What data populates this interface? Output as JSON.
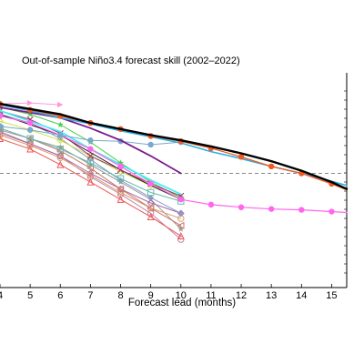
{
  "chart_data": {
    "type": "line",
    "title": "Out-of-sample Niño3.4 forecast skill (2002–2022)",
    "xlabel": "Forecast lead (months)",
    "ylabel": "",
    "x_ticks": [
      4,
      5,
      6,
      7,
      8,
      9,
      10,
      11,
      12,
      13,
      14,
      15
    ],
    "xlim": [
      4,
      15.5
    ],
    "ylim": [
      0.0,
      1.0
    ],
    "reference_line": 0.5,
    "grid": false,
    "series": [
      {
        "color": "#000000",
        "marker": "none",
        "width": 2.4,
        "x": [
          4,
          5,
          6,
          7,
          8,
          9,
          10,
          11,
          12,
          13,
          14,
          15,
          15.5
        ],
        "y": [
          0.9,
          0.87,
          0.84,
          0.79,
          0.755,
          0.72,
          0.69,
          0.655,
          0.615,
          0.57,
          0.515,
          0.45,
          0.41
        ]
      },
      {
        "color": "#f05a22",
        "marker": "circle-filled",
        "width": 1.3,
        "x": [
          4,
          5,
          6,
          7,
          8,
          9,
          10,
          11,
          12,
          13,
          14,
          15,
          15.5
        ],
        "y": [
          0.9,
          0.865,
          0.83,
          0.79,
          0.755,
          0.715,
          0.685,
          0.645,
          0.595,
          0.54,
          0.5,
          0.44,
          0.405
        ]
      },
      {
        "color": "#2ab0e0",
        "marker": "none",
        "width": 1.6,
        "x": [
          4,
          5,
          6,
          7,
          8,
          9,
          10,
          11,
          12,
          13,
          14,
          15,
          15.5
        ],
        "y": [
          0.895,
          0.86,
          0.82,
          0.785,
          0.745,
          0.71,
          0.675,
          0.625,
          0.585,
          0.54,
          0.5,
          0.455,
          0.43
        ]
      },
      {
        "color": "#7a1a8c",
        "marker": "none",
        "width": 1.8,
        "x": [
          4,
          5,
          6,
          7,
          8,
          9,
          10
        ],
        "y": [
          0.88,
          0.85,
          0.82,
          0.76,
          0.69,
          0.6,
          0.5
        ]
      },
      {
        "color": "#78a8cc",
        "marker": "circle-filled",
        "width": 1.0,
        "x": [
          4,
          5,
          6,
          7,
          8,
          9,
          10
        ],
        "y": [
          0.77,
          0.75,
          0.72,
          0.69,
          0.685,
          0.665,
          0.68
        ]
      },
      {
        "color": "#ff66ee",
        "marker": "circle-filled",
        "width": 1.2,
        "x": [
          4,
          5,
          6,
          7,
          8,
          9,
          10,
          11,
          12,
          13,
          14,
          15,
          15.5
        ],
        "y": [
          0.83,
          0.79,
          0.72,
          0.64,
          0.54,
          0.44,
          0.35,
          0.32,
          0.305,
          0.295,
          0.29,
          0.28,
          0.275
        ]
      },
      {
        "color": "#ff99dd",
        "marker": "triangle-right",
        "width": 1.0,
        "x": [
          4,
          5,
          6
        ],
        "y": [
          0.9,
          0.905,
          0.895
        ]
      },
      {
        "color": "#44eeee",
        "marker": "none",
        "width": 1.8,
        "x": [
          4,
          5,
          6,
          7,
          8,
          9,
          10
        ],
        "y": [
          0.86,
          0.8,
          0.74,
          0.64,
          0.55,
          0.46,
          0.38
        ]
      },
      {
        "color": "#a03070",
        "marker": "x",
        "width": 1.0,
        "x": [
          4,
          5,
          6,
          7,
          8,
          9,
          10
        ],
        "y": [
          0.86,
          0.81,
          0.73,
          0.6,
          0.52,
          0.44,
          0.37
        ]
      },
      {
        "color": "#222222",
        "marker": "none",
        "width": 1.0,
        "x": [
          4,
          5,
          6,
          7,
          8,
          9,
          10
        ],
        "y": [
          0.84,
          0.78,
          0.72,
          0.62,
          0.52,
          0.43,
          0.35
        ]
      },
      {
        "color": "#44cc44",
        "marker": "star",
        "width": 1.0,
        "x": [
          4,
          5,
          6,
          7,
          8,
          9,
          10
        ],
        "y": [
          0.88,
          0.84,
          0.78,
          0.68,
          0.56,
          0.45,
          0.36
        ]
      },
      {
        "color": "#ccdd44",
        "marker": "diamond-open",
        "width": 1.0,
        "x": [
          4,
          5,
          6,
          7,
          8,
          9,
          10
        ],
        "y": [
          0.8,
          0.75,
          0.69,
          0.6,
          0.51,
          0.43,
          0.36
        ]
      },
      {
        "color": "#66bbaa",
        "marker": "square-open",
        "width": 1.0,
        "x": [
          4,
          5,
          6,
          7,
          8,
          9,
          10
        ],
        "y": [
          0.76,
          0.7,
          0.64,
          0.56,
          0.47,
          0.39,
          0.34
        ]
      },
      {
        "color": "#8899cc",
        "marker": "diamond-filled",
        "width": 1.0,
        "x": [
          4,
          5,
          6,
          7,
          8,
          9,
          10
        ],
        "y": [
          0.84,
          0.79,
          0.7,
          0.58,
          0.46,
          0.36,
          0.27
        ]
      },
      {
        "color": "#cc7766",
        "marker": "triangle-left",
        "width": 1.0,
        "x": [
          4,
          5,
          6,
          7,
          8,
          9,
          10
        ],
        "y": [
          0.76,
          0.7,
          0.63,
          0.53,
          0.41,
          0.3,
          0.2
        ]
      },
      {
        "color": "#dd9966",
        "marker": "circle-open",
        "width": 1.0,
        "x": [
          4,
          5,
          6,
          7,
          8,
          9,
          10
        ],
        "y": [
          0.72,
          0.66,
          0.59,
          0.49,
          0.39,
          0.3,
          0.24
        ]
      },
      {
        "color": "#ee5555",
        "marker": "triangle-up",
        "width": 1.0,
        "x": [
          4,
          5,
          6,
          7,
          8,
          9,
          10
        ],
        "y": [
          0.7,
          0.64,
          0.55,
          0.45,
          0.35,
          0.25,
          0.14
        ]
      },
      {
        "color": "#aa66aa",
        "marker": "diamond-open",
        "width": 1.0,
        "x": [
          4,
          5,
          6,
          7,
          8,
          9,
          10
        ],
        "y": [
          0.74,
          0.67,
          0.6,
          0.5,
          0.41,
          0.33,
          0.27
        ]
      },
      {
        "color": "#bb88aa",
        "marker": "circle-open",
        "width": 1.0,
        "x": [
          4,
          5,
          6,
          7,
          8,
          9,
          10
        ],
        "y": [
          0.73,
          0.67,
          0.6,
          0.48,
          0.38,
          0.27,
          0.12
        ]
      },
      {
        "color": "#999999",
        "marker": "star",
        "width": 1.0,
        "x": [
          4,
          5,
          6,
          7,
          8,
          9,
          10
        ],
        "y": [
          0.75,
          0.7,
          0.65,
          0.55,
          0.45,
          0.35,
          0.18
        ]
      }
    ]
  }
}
